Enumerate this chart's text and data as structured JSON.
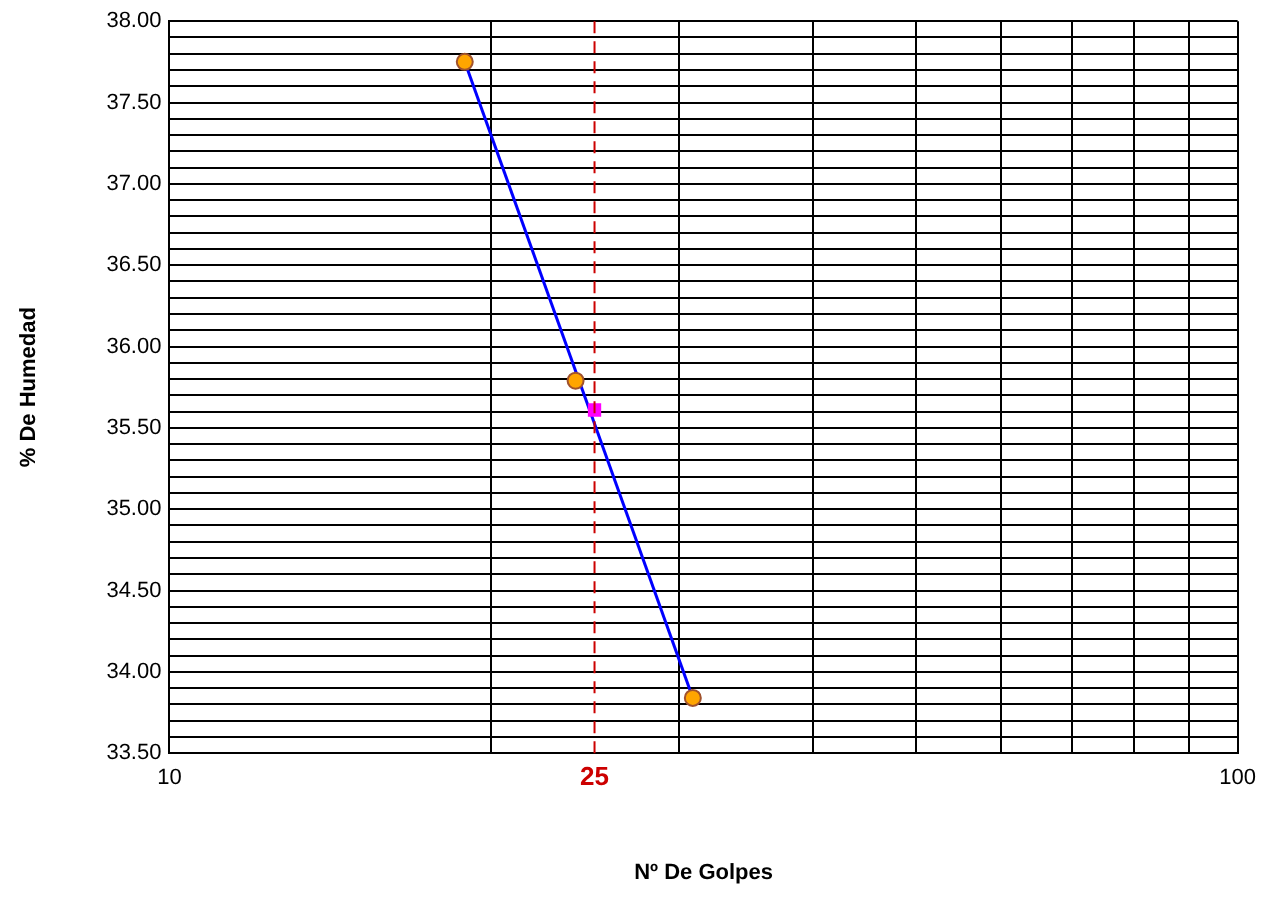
{
  "chart_data": {
    "type": "scatter",
    "xlabel": "Nº De Golpes",
    "ylabel": "% De Humedad",
    "log": "x",
    "grid": true,
    "legend": false,
    "xlim": [
      10,
      100
    ],
    "xticks": [
      10,
      {
        "value": 20,
        "label": null
      },
      {
        "value": 30,
        "label": null
      },
      {
        "value": 40,
        "label": null
      },
      {
        "value": 50,
        "label": null
      },
      {
        "value": 60,
        "label": null
      },
      {
        "value": 70,
        "label": null
      },
      {
        "value": 80,
        "label": null
      },
      {
        "value": 90,
        "label": null
      },
      100
    ],
    "ylim": [
      33.5,
      38
    ],
    "yticks": [
      {
        "value": 33.5,
        "label": "33.50"
      },
      {
        "value": 33.6,
        "label": null
      },
      {
        "value": 33.7,
        "label": null
      },
      {
        "value": 33.8,
        "label": null
      },
      {
        "value": 33.9,
        "label": null
      },
      {
        "value": 34,
        "label": "34.00"
      },
      {
        "value": 34.1,
        "label": null
      },
      {
        "value": 34.2,
        "label": null
      },
      {
        "value": 34.3,
        "label": null
      },
      {
        "value": 34.4,
        "label": null
      },
      {
        "value": 34.5,
        "label": "34.50"
      },
      {
        "value": 34.6,
        "label": null
      },
      {
        "value": 34.7,
        "label": null
      },
      {
        "value": 34.8,
        "label": null
      },
      {
        "value": 34.9,
        "label": null
      },
      {
        "value": 35,
        "label": "35.00"
      },
      {
        "value": 35.1,
        "label": null
      },
      {
        "value": 35.2,
        "label": null
      },
      {
        "value": 35.3,
        "label": null
      },
      {
        "value": 35.4,
        "label": null
      },
      {
        "value": 35.5,
        "label": "35.50"
      },
      {
        "value": 35.6,
        "label": null
      },
      {
        "value": 35.7,
        "label": null
      },
      {
        "value": 35.8,
        "label": null
      },
      {
        "value": 35.9,
        "label": null
      },
      {
        "value": 36,
        "label": "36.00"
      },
      {
        "value": 36.1,
        "label": null
      },
      {
        "value": 36.2,
        "label": null
      },
      {
        "value": 36.3,
        "label": null
      },
      {
        "value": 36.4,
        "label": null
      },
      {
        "value": 36.5,
        "label": "36.50"
      },
      {
        "value": 36.6,
        "label": null
      },
      {
        "value": 36.7,
        "label": null
      },
      {
        "value": 36.8,
        "label": null
      },
      {
        "value": 36.9,
        "label": null
      },
      {
        "value": 37,
        "label": "37.00"
      },
      {
        "value": 37.1,
        "label": null
      },
      {
        "value": 37.2,
        "label": null
      },
      {
        "value": 37.3,
        "label": null
      },
      {
        "value": 37.4,
        "label": null
      },
      {
        "value": 37.5,
        "label": "37.50"
      },
      {
        "value": 37.6,
        "label": null
      },
      {
        "value": 37.7,
        "label": null
      },
      {
        "value": 37.8,
        "label": null
      },
      {
        "value": 37.9,
        "label": null
      },
      {
        "value": 38,
        "label": "38.00"
      }
    ],
    "ref_lines": [
      {
        "axis": "x",
        "value": 25,
        "label": "25",
        "color": "#cc0000",
        "line_style": "dashed"
      }
    ],
    "series": [
      {
        "type": "line",
        "x": [
          18.9,
          30.9
        ],
        "values": [
          37.75,
          33.84
        ],
        "color": "#0000ff",
        "marker": "none"
      },
      {
        "x": [
          18.9,
          24,
          30.9
        ],
        "values": [
          37.75,
          35.79,
          33.84
        ],
        "color": "#ffa500",
        "marker": "circle"
      },
      {
        "x": [
          25
        ],
        "values": [
          35.61
        ],
        "color": "#ff00ff",
        "marker": "square"
      }
    ]
  }
}
